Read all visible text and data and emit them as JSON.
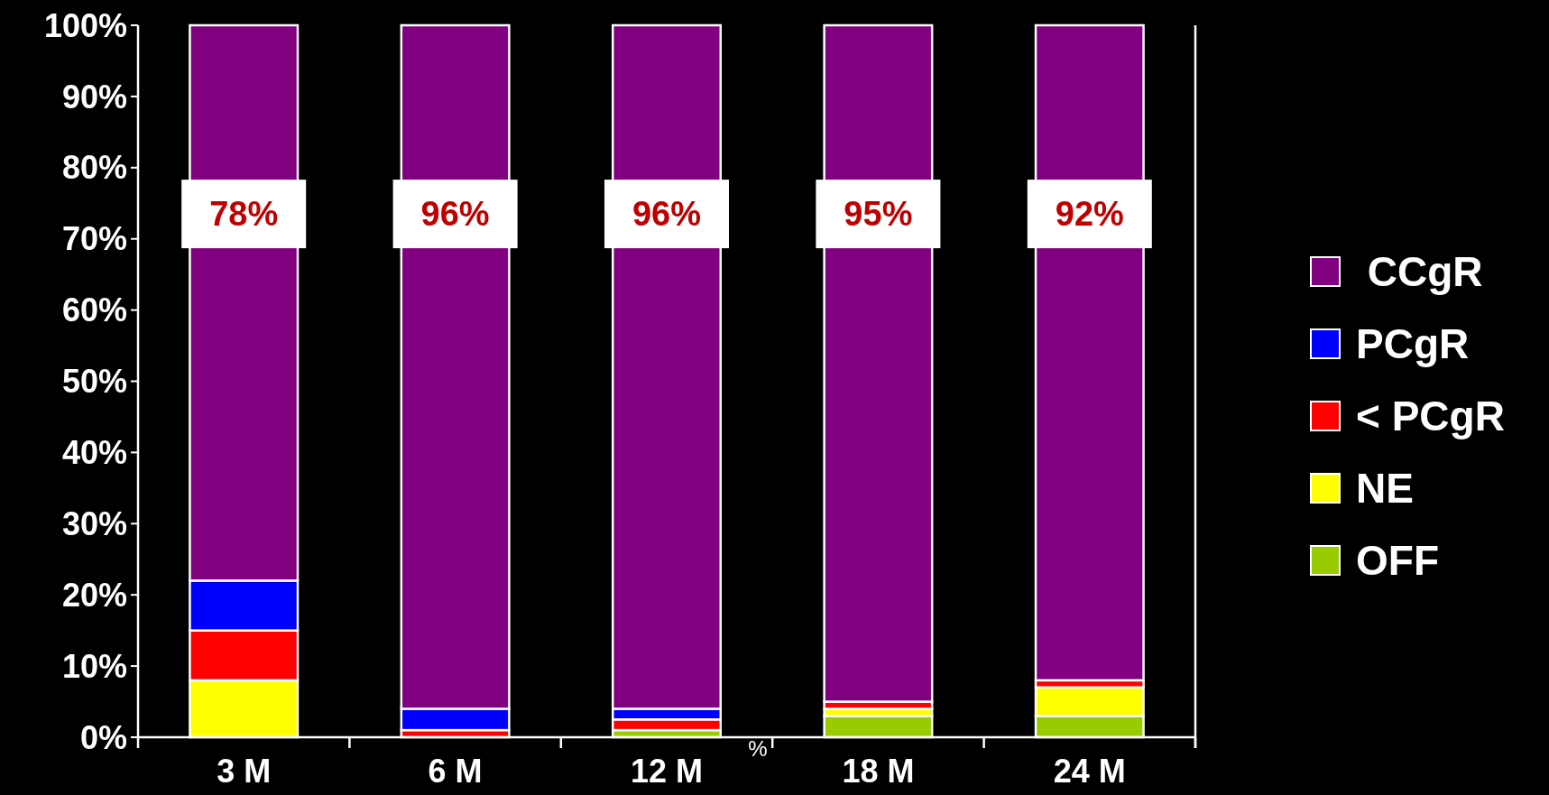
{
  "chart_data": {
    "type": "bar",
    "stacked": true,
    "categories": [
      "3 M",
      "6 M",
      "12 M",
      "18 M",
      "24 M"
    ],
    "series": [
      {
        "name": "OFF",
        "color": "#99cc00",
        "values": [
          0,
          0,
          1,
          3,
          3
        ]
      },
      {
        "name": "NE",
        "color": "#ffff00",
        "values": [
          8,
          0,
          0,
          1,
          4
        ]
      },
      {
        "name": "< PCgR",
        "color": "#ff0000",
        "values": [
          7,
          1,
          1.5,
          1,
          1
        ]
      },
      {
        "name": "PCgR",
        "color": "#0000ff",
        "values": [
          7,
          3,
          1.5,
          0,
          0
        ]
      },
      {
        "name": " CCgR",
        "color": "#800080",
        "values": [
          78,
          96,
          96,
          95,
          92
        ],
        "value_labels": [
          "78%",
          "96%",
          "96%",
          "95%",
          "92%"
        ]
      }
    ],
    "ylim": [
      0,
      100
    ],
    "yticks": [
      {
        "value": 0,
        "label": "0%"
      },
      {
        "value": 10,
        "label": "10%"
      },
      {
        "value": 20,
        "label": "20%"
      },
      {
        "value": 30,
        "label": "30%"
      },
      {
        "value": 40,
        "label": "40%"
      },
      {
        "value": 50,
        "label": "50%"
      },
      {
        "value": 60,
        "label": "60%"
      },
      {
        "value": 70,
        "label": "70%"
      },
      {
        "value": 80,
        "label": "80%"
      },
      {
        "value": 90,
        "label": "90%"
      },
      {
        "value": 100,
        "label": "100%"
      }
    ],
    "legend": "right",
    "grid": false,
    "annotations": [
      "%"
    ]
  }
}
